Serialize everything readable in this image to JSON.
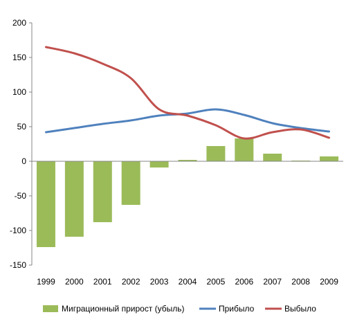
{
  "chart_data": {
    "type": "bar+line",
    "categories": [
      "1999",
      "2000",
      "2001",
      "2002",
      "2003",
      "2004",
      "2005",
      "2006",
      "2007",
      "2008",
      "2009"
    ],
    "series": [
      {
        "name": "Миграционный прирост (убыль)",
        "type": "bar",
        "color": "#9bbb59",
        "values": [
          -124,
          -109,
          -88,
          -63,
          -9,
          2,
          22,
          33,
          11,
          1,
          7
        ]
      },
      {
        "name": "Прибыло",
        "type": "line",
        "color": "#4f81bd",
        "values": [
          42,
          48,
          54,
          59,
          66,
          69,
          75,
          67,
          55,
          48,
          43
        ]
      },
      {
        "name": "Выбыло",
        "type": "line",
        "color": "#c0504d",
        "values": [
          165,
          156,
          141,
          120,
          75,
          66,
          52,
          33,
          42,
          46,
          34
        ]
      }
    ],
    "yticks": [
      "200",
      "150",
      "100",
      "50",
      "0",
      "-50",
      "-100",
      "-150"
    ],
    "ylim": [
      -150,
      200
    ],
    "grid": false,
    "legend_position": "bottom"
  }
}
